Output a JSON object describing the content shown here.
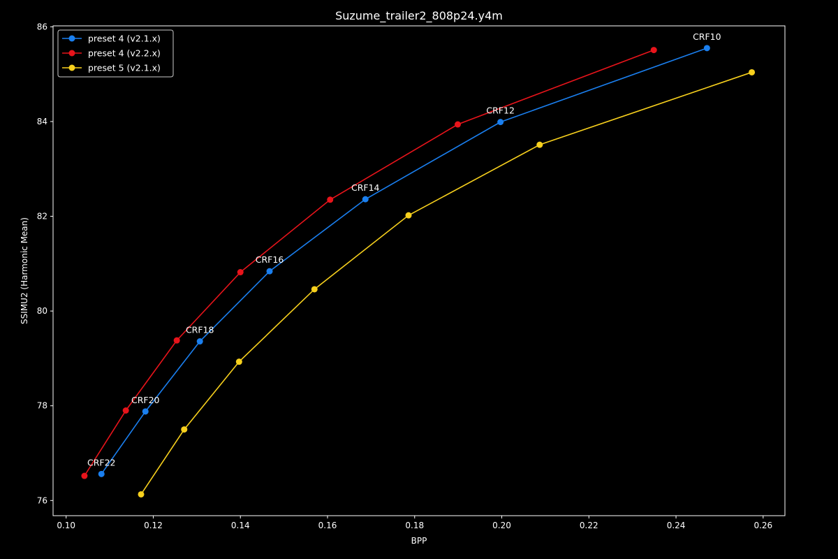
{
  "chart_data": {
    "type": "line",
    "title": "Suzume_trailer2_808p24.y4m",
    "xlabel": "BPP",
    "ylabel": "SSIMU2 (Harmonic Mean)",
    "xlim": [
      0.097,
      0.265
    ],
    "ylim": [
      75.68,
      86.02
    ],
    "xticks": [
      0.1,
      0.12,
      0.14,
      0.16,
      0.18,
      0.2,
      0.22,
      0.24,
      0.26
    ],
    "xtick_labels": [
      "0.10",
      "0.12",
      "0.14",
      "0.16",
      "0.18",
      "0.20",
      "0.22",
      "0.24",
      "0.26"
    ],
    "yticks": [
      76,
      78,
      80,
      82,
      84,
      86
    ],
    "ytick_labels": [
      "76",
      "78",
      "80",
      "82",
      "84",
      "86"
    ],
    "grid": false,
    "legend": "top-left",
    "background": "#000000",
    "foreground": "#ffffff",
    "series": [
      {
        "name": "preset 4 (v2.1.x)",
        "color": "#1a7fef",
        "x": [
          0.1081,
          0.1182,
          0.1307,
          0.1467,
          0.1687,
          0.1997,
          0.2471
        ],
        "y": [
          76.56,
          77.88,
          79.36,
          80.84,
          82.36,
          83.99,
          85.55
        ]
      },
      {
        "name": "preset 4 (v2.2.x)",
        "color": "#e8141b",
        "x": [
          0.1042,
          0.1137,
          0.1254,
          0.14,
          0.1606,
          0.1899,
          0.2349
        ],
        "y": [
          76.52,
          77.9,
          79.38,
          80.82,
          82.35,
          83.94,
          85.51
        ]
      },
      {
        "name": "preset 5 (v2.1.x)",
        "color": "#f7d01d",
        "x": [
          0.1172,
          0.1271,
          0.1397,
          0.157,
          0.1786,
          0.2087,
          0.2574
        ],
        "y": [
          76.13,
          77.5,
          78.93,
          80.46,
          82.02,
          83.51,
          85.04
        ]
      }
    ],
    "annotations": [
      {
        "text": "CRF22",
        "x": 0.1081,
        "y": 76.56
      },
      {
        "text": "CRF20",
        "x": 0.1182,
        "y": 77.88
      },
      {
        "text": "CRF18",
        "x": 0.1307,
        "y": 79.36
      },
      {
        "text": "CRF16",
        "x": 0.1467,
        "y": 80.84
      },
      {
        "text": "CRF14",
        "x": 0.1687,
        "y": 82.36
      },
      {
        "text": "CRF12",
        "x": 0.1997,
        "y": 83.99
      },
      {
        "text": "CRF10",
        "x": 0.2471,
        "y": 85.55
      }
    ]
  }
}
